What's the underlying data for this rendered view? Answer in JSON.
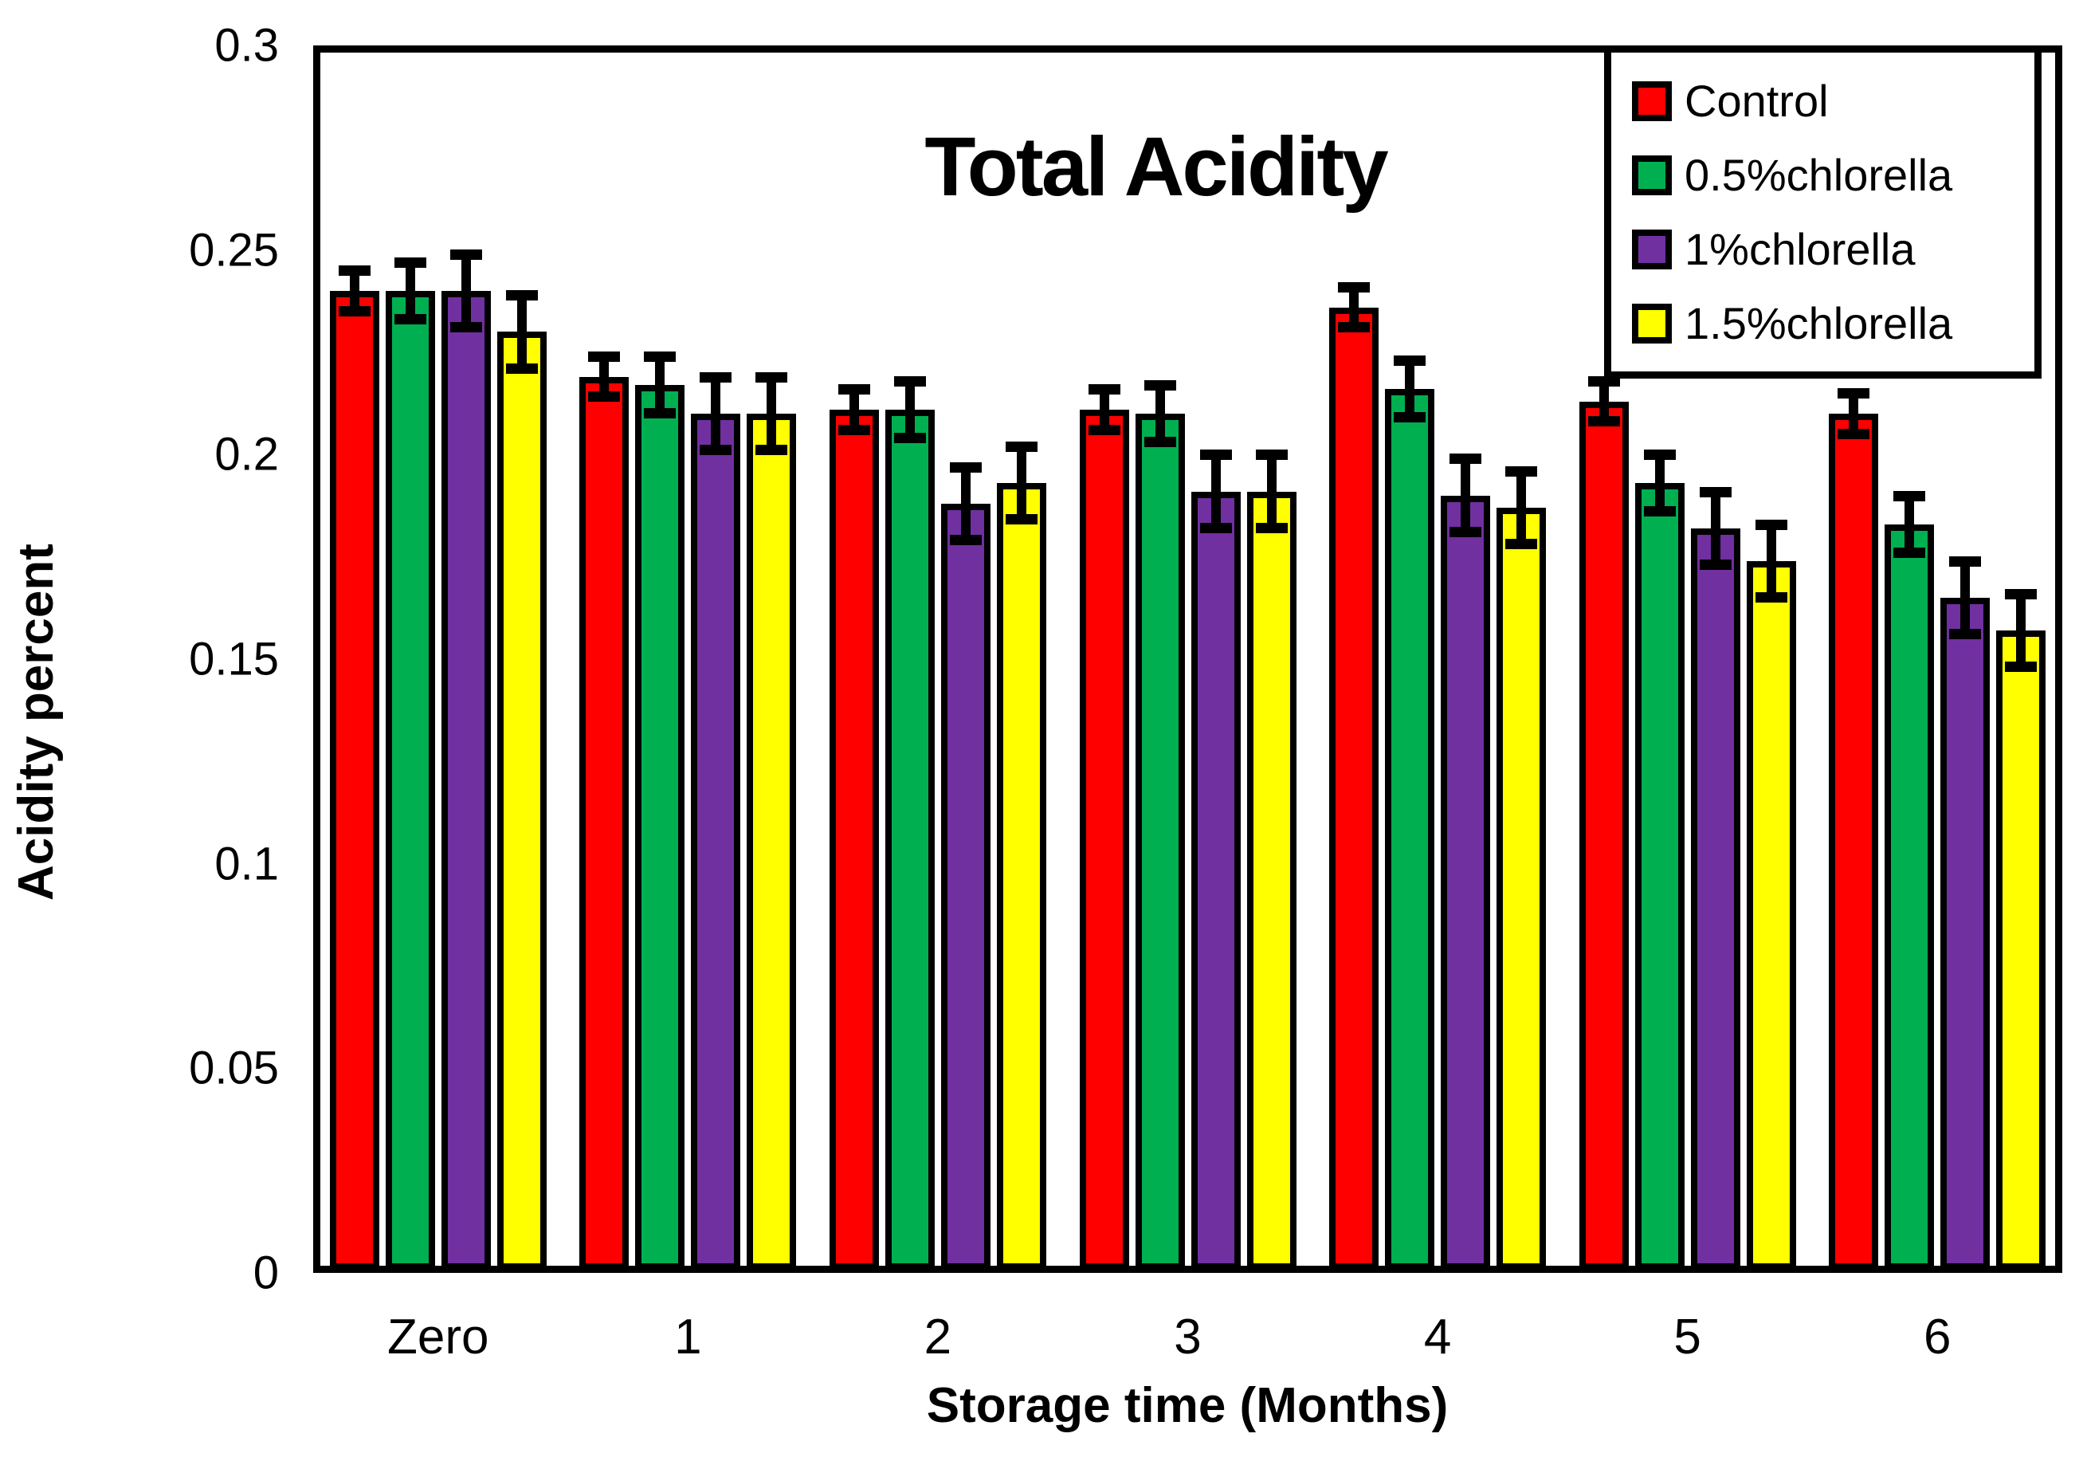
{
  "chart_data": {
    "type": "bar",
    "title": "Total Acidity",
    "xlabel": "Storage time (Months)",
    "ylabel": "Acidity percent",
    "ylim": [
      0,
      0.3
    ],
    "ytick_labels": [
      "0",
      "0.05",
      "0.1",
      "0.15",
      "0.2",
      "0.25",
      "0.3"
    ],
    "grid": false,
    "legend_position": "top-right",
    "error_bars": true,
    "bar_outline_color": "#000000",
    "categories": [
      "Zero",
      "1",
      "2",
      "3",
      "4",
      "5",
      "6"
    ],
    "series": [
      {
        "name": "Control",
        "color": "#FF0000",
        "values": [
          0.24,
          0.219,
          0.211,
          0.211,
          0.236,
          0.213,
          0.21
        ],
        "error": 0.005
      },
      {
        "name": "0.5%chlorella",
        "color": "#00B050",
        "values": [
          0.24,
          0.217,
          0.211,
          0.21,
          0.216,
          0.193,
          0.183
        ],
        "error": 0.007
      },
      {
        "name": "1%chlorella",
        "color": "#7030A0",
        "values": [
          0.24,
          0.21,
          0.188,
          0.191,
          0.19,
          0.182,
          0.165
        ],
        "error": 0.009
      },
      {
        "name": "1.5%chlorella",
        "color": "#FFFF00",
        "values": [
          0.23,
          0.21,
          0.193,
          0.191,
          0.187,
          0.174,
          0.157
        ],
        "error": 0.009
      }
    ]
  }
}
